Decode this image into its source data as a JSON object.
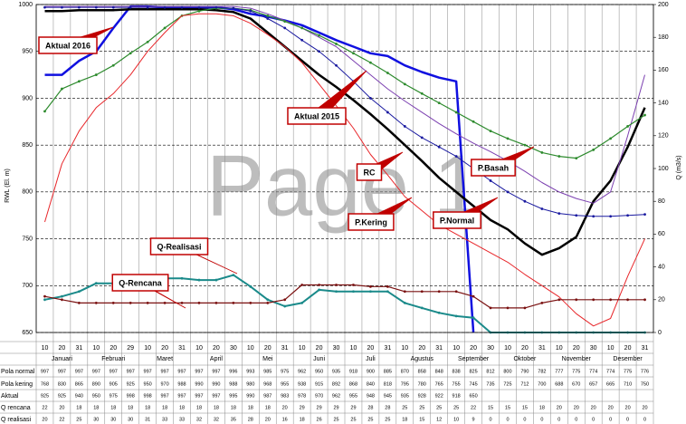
{
  "chart_data": {
    "type": "line",
    "watermark": "Page 1",
    "y_label": "RWL (El. m)",
    "y2_label": "Q (m3/s)",
    "categories": [
      "10",
      "20",
      "31",
      "10",
      "20",
      "29",
      "10",
      "20",
      "31",
      "10",
      "20",
      "30",
      "10",
      "20",
      "31",
      "10",
      "20",
      "30",
      "10",
      "20",
      "31",
      "10",
      "20",
      "31",
      "10",
      "20",
      "30",
      "10",
      "20",
      "31",
      "10",
      "20",
      "30",
      "10",
      "20",
      "31"
    ],
    "months": [
      "Januari",
      "Februari",
      "Maret",
      "April",
      "Mei",
      "Juni",
      "Juli",
      "Agustus",
      "September",
      "Oktober",
      "November",
      "Desember"
    ],
    "ylim": [
      650,
      1000
    ],
    "yticks": [
      650,
      700,
      750,
      800,
      850,
      900,
      950,
      1000
    ],
    "y2lim": [
      0,
      200
    ],
    "y2ticks": [
      0,
      20,
      40,
      60,
      80,
      100,
      120,
      140,
      160,
      180,
      200
    ],
    "grid": true,
    "series": [
      {
        "name": "Aktual 2016",
        "color": "#1010e0",
        "width": 2.5,
        "marker": false,
        "values": [
          925,
          925,
          940,
          950,
          975,
          998,
          998,
          997,
          997,
          997,
          997,
          995,
          990,
          987,
          983,
          978,
          970,
          962,
          955,
          948,
          945,
          935,
          928,
          922,
          918,
          650,
          null,
          null,
          null,
          null,
          null,
          null,
          null,
          null,
          null,
          null
        ]
      },
      {
        "name": "Aktual 2015",
        "color": "#000000",
        "width": 2.5,
        "marker": false,
        "values": [
          993,
          993,
          994,
          994,
          994,
          995,
          995,
          995,
          995,
          995,
          994,
          992,
          985,
          970,
          955,
          940,
          925,
          912,
          898,
          883,
          867,
          850,
          833,
          815,
          800,
          785,
          770,
          760,
          745,
          733,
          740,
          752,
          790,
          812,
          848,
          890
        ]
      },
      {
        "name": "RC",
        "color": "#7b3fb0",
        "width": 1,
        "marker": false,
        "values": [
          998,
          998,
          998,
          998,
          998,
          998,
          998,
          998,
          998,
          998,
          998,
          998,
          996,
          990,
          983,
          975,
          965,
          955,
          940,
          925,
          910,
          897,
          885,
          873,
          862,
          852,
          843,
          833,
          822,
          810,
          800,
          793,
          788,
          800,
          860,
          925
        ]
      },
      {
        "name": "P.Basah",
        "color": "#2e8b2e",
        "width": 1.2,
        "marker": true,
        "values": [
          886,
          910,
          918,
          925,
          935,
          948,
          960,
          975,
          988,
          993,
          996,
          996,
          994,
          988,
          982,
          975,
          967,
          958,
          948,
          938,
          927,
          915,
          905,
          895,
          885,
          875,
          865,
          857,
          850,
          842,
          838,
          836,
          845,
          857,
          870,
          882
        ]
      },
      {
        "name": "P.Kering",
        "color": "#e8262a",
        "width": 1,
        "marker": false,
        "values": [
          768,
          830,
          865,
          890,
          905,
          925,
          950,
          970,
          988,
          990,
          990,
          988,
          980,
          968,
          955,
          938,
          915,
          892,
          868,
          840,
          818,
          795,
          780,
          765,
          755,
          745,
          735,
          725,
          712,
          700,
          688,
          670,
          657,
          665,
          710,
          750
        ]
      },
      {
        "name": "P.Normal",
        "color": "#1a1aa0",
        "width": 1,
        "marker": true,
        "values": [
          997,
          997,
          997,
          997,
          997,
          997,
          997,
          997,
          997,
          997,
          997,
          996,
          993,
          985,
          975,
          962,
          950,
          935,
          918,
          900,
          885,
          870,
          858,
          848,
          838,
          825,
          812,
          800,
          790,
          782,
          777,
          775,
          774,
          774,
          775,
          776
        ]
      },
      {
        "name": "Q-Realisasi",
        "color": "#1a8a8a",
        "width": 2,
        "marker": true,
        "axis": "y2",
        "values": [
          20,
          22,
          25,
          30,
          30,
          30,
          31,
          33,
          33,
          32,
          32,
          35,
          28,
          20,
          16,
          18,
          26,
          25,
          25,
          25,
          25,
          18,
          15,
          12,
          10,
          9,
          0,
          0,
          0,
          0,
          0,
          0,
          0,
          0,
          0,
          0
        ]
      },
      {
        "name": "Q-Rencana",
        "color": "#7a1010",
        "width": 1.2,
        "marker": true,
        "axis": "y2",
        "values": [
          22,
          20,
          18,
          18,
          18,
          18,
          18,
          18,
          18,
          18,
          18,
          18,
          18,
          18,
          20,
          29,
          29,
          29,
          29,
          28,
          28,
          25,
          25,
          25,
          25,
          22,
          15,
          15,
          15,
          18,
          20,
          20,
          20,
          20,
          20,
          20
        ]
      }
    ]
  },
  "table": {
    "row_labels": [
      "Pola normal",
      "Pola kering",
      "Aktual",
      "Q rencana",
      "Q realisasi"
    ]
  }
}
